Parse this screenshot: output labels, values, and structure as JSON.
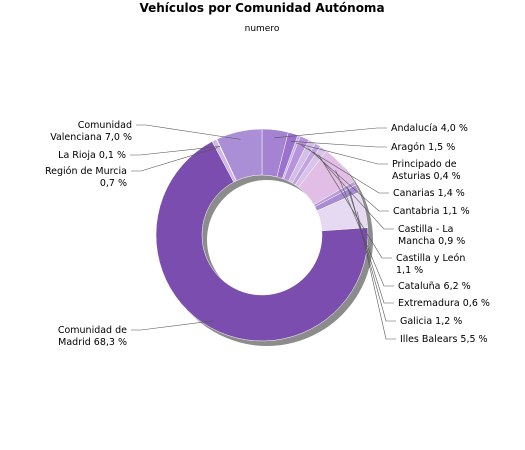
{
  "chart_data": {
    "type": "pie",
    "donut": true,
    "title": "Vehículos por Comunidad Autónoma",
    "subtitle": "numero",
    "slices": [
      {
        "name": "Andalucía",
        "value": 4.0,
        "label": [
          "Andalucía 4,0 %"
        ],
        "color": "#a583d2"
      },
      {
        "name": "Aragón",
        "value": 1.5,
        "label": [
          "Aragón 1,5 %"
        ],
        "color": "#9a72cc"
      },
      {
        "name": "Principado de Asturias",
        "value": 0.4,
        "label": [
          "Principado de",
          "Asturias 0,4 %"
        ],
        "color": "#c5aee3"
      },
      {
        "name": "Canarias",
        "value": 1.4,
        "label": [
          "Canarias 1,4 %"
        ],
        "color": "#b693dc"
      },
      {
        "name": "Cantabria",
        "value": 1.1,
        "label": [
          "Cantabria 1,1 %"
        ],
        "color": "#d2bfe8"
      },
      {
        "name": "Castilla - La Mancha",
        "value": 0.9,
        "label": [
          "Castilla - La",
          "Mancha 0,9 %"
        ],
        "color": "#c3a3df"
      },
      {
        "name": "Castilla y León",
        "value": 1.1,
        "label": [
          "Castilla y León",
          "1,1 %"
        ],
        "color": "#d8c3ea"
      },
      {
        "name": "Cataluña",
        "value": 6.2,
        "label": [
          "Cataluña 6,2 %"
        ],
        "color": "#e2bde5"
      },
      {
        "name": "Extremadura",
        "value": 0.6,
        "label": [
          "Extremadura 0,6 %"
        ],
        "color": "#b99bd9"
      },
      {
        "name": "Galicia",
        "value": 1.2,
        "label": [
          "Galicia 1,2 %"
        ],
        "color": "#a88bd2"
      },
      {
        "name": "Illes Balears",
        "value": 5.5,
        "label": [
          "Illes Balears 5,5 %"
        ],
        "color": "#e5daf1"
      },
      {
        "name": "Comunidad de Madrid",
        "value": 68.3,
        "label": [
          "Comunidad de",
          "Madrid 68,3 %"
        ],
        "color": "#7b4dae"
      },
      {
        "name": "Región de Murcia",
        "value": 0.7,
        "label": [
          "Región de Murcia",
          "0,7 %"
        ],
        "color": "#cfb7e6"
      },
      {
        "name": "La Rioja",
        "value": 0.1,
        "label": [
          "La Rioja 0,1 %"
        ],
        "color": "#e8ddf3"
      },
      {
        "name": "Comunidad Valenciana",
        "value": 7.0,
        "label": [
          "Comunidad",
          "Valenciana 7,0 %"
        ],
        "color": "#ab8fd6"
      }
    ],
    "legend": "none",
    "colors": {
      "shadow": "#8c8c8c",
      "leader_line": "#555555"
    }
  }
}
